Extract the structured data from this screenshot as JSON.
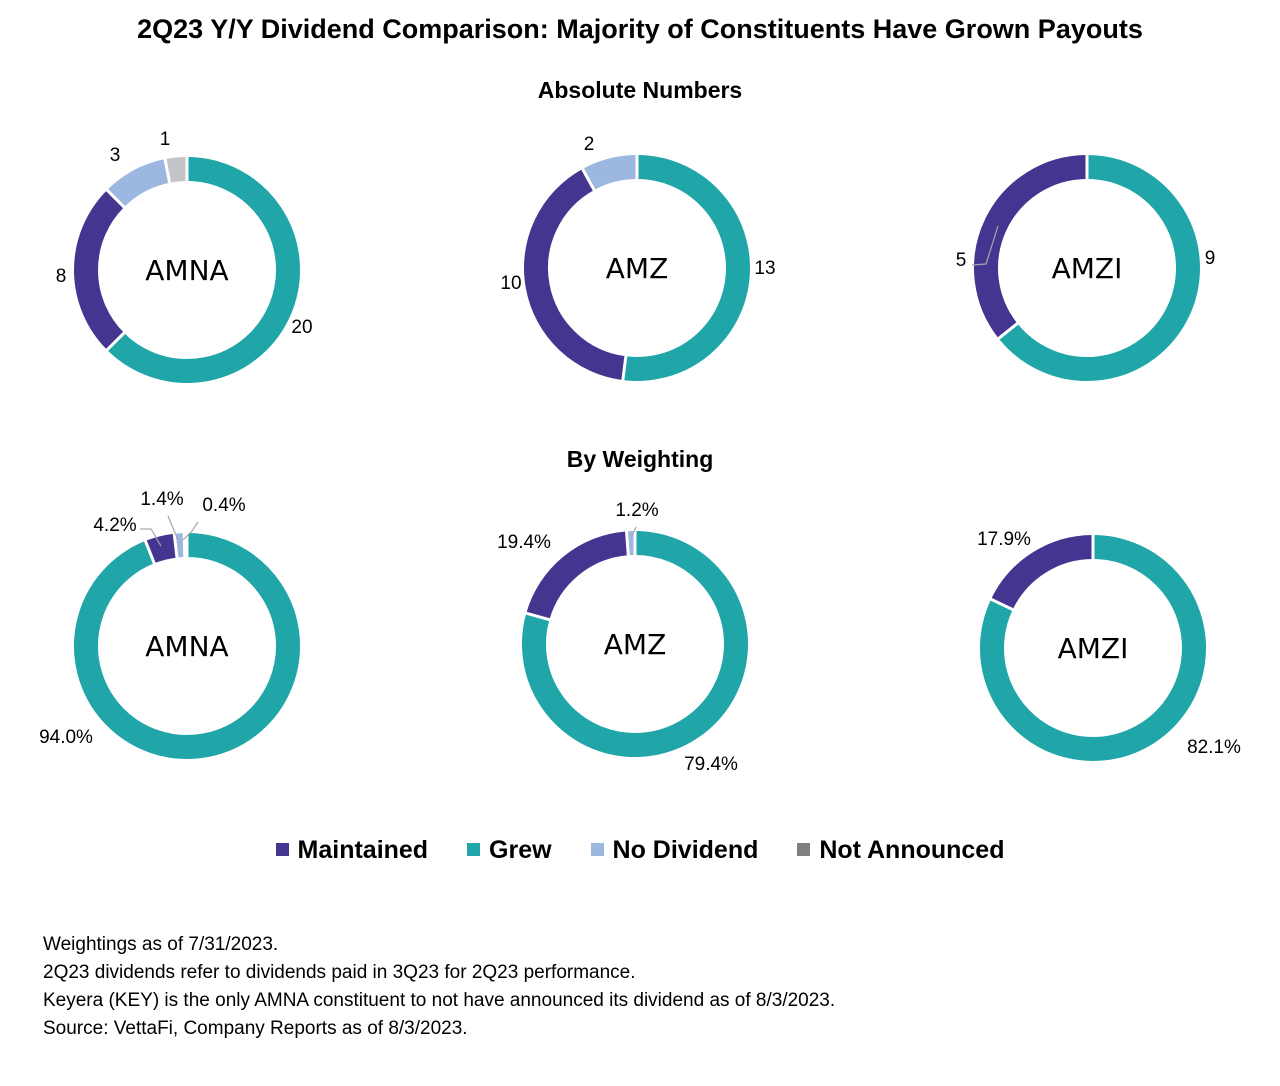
{
  "title": "2Q23 Y/Y Dividend Comparison: Majority of Constituents Have Grown Payouts",
  "sections": {
    "absolute": "Absolute Numbers",
    "weighting": "By Weighting"
  },
  "colors": {
    "Maintained": "#463590",
    "Grew": "#20A5A8",
    "No Dividend": "#9DB8E0",
    "Not Announced": "#C4C4C8",
    "legend_not_announced": "#7F7F7F"
  },
  "legend": [
    {
      "label": "Maintained",
      "color": "#463590"
    },
    {
      "label": "Grew",
      "color": "#20A5A8"
    },
    {
      "label": "No Dividend",
      "color": "#9DB8E0"
    },
    {
      "label": "Not Announced",
      "color": "#7F7F7F"
    }
  ],
  "chart_data": [
    {
      "type": "pie",
      "group": "Absolute Numbers",
      "center_label": "AMNA",
      "categories": [
        "Grew",
        "Maintained",
        "No Dividend",
        "Not Announced"
      ],
      "values": [
        20,
        8,
        3,
        1
      ],
      "labels": [
        "20",
        "8",
        "3",
        "1"
      ]
    },
    {
      "type": "pie",
      "group": "Absolute Numbers",
      "center_label": "AMZ",
      "categories": [
        "Grew",
        "Maintained",
        "No Dividend"
      ],
      "values": [
        13,
        10,
        2
      ],
      "labels": [
        "13",
        "10",
        "2"
      ]
    },
    {
      "type": "pie",
      "group": "Absolute Numbers",
      "center_label": "AMZI",
      "categories": [
        "Grew",
        "Maintained"
      ],
      "values": [
        9,
        5
      ],
      "labels": [
        "9",
        "5"
      ]
    },
    {
      "type": "pie",
      "group": "By Weighting",
      "center_label": "AMNA",
      "categories": [
        "Grew",
        "Maintained",
        "No Dividend",
        "Not Announced"
      ],
      "values": [
        94.0,
        4.2,
        1.4,
        0.4
      ],
      "labels": [
        "94.0%",
        "4.2%",
        "1.4%",
        "0.4%"
      ]
    },
    {
      "type": "pie",
      "group": "By Weighting",
      "center_label": "AMZ",
      "categories": [
        "Grew",
        "Maintained",
        "No Dividend"
      ],
      "values": [
        79.4,
        19.4,
        1.2
      ],
      "labels": [
        "79.4%",
        "19.4%",
        "1.2%"
      ]
    },
    {
      "type": "pie",
      "group": "By Weighting",
      "center_label": "AMZI",
      "categories": [
        "Grew",
        "Maintained"
      ],
      "values": [
        82.1,
        17.9
      ],
      "labels": [
        "82.1%",
        "17.9%"
      ]
    }
  ],
  "notes": [
    "Weightings as of 7/31/2023.",
    "2Q23 dividends refer to dividends paid in 3Q23 for 2Q23 performance.",
    "Keyera (KEY) is the only AMNA constituent to not have announced its dividend as of 8/3/2023.",
    "Source: VettaFi, Company Reports as of 8/3/2023."
  ]
}
